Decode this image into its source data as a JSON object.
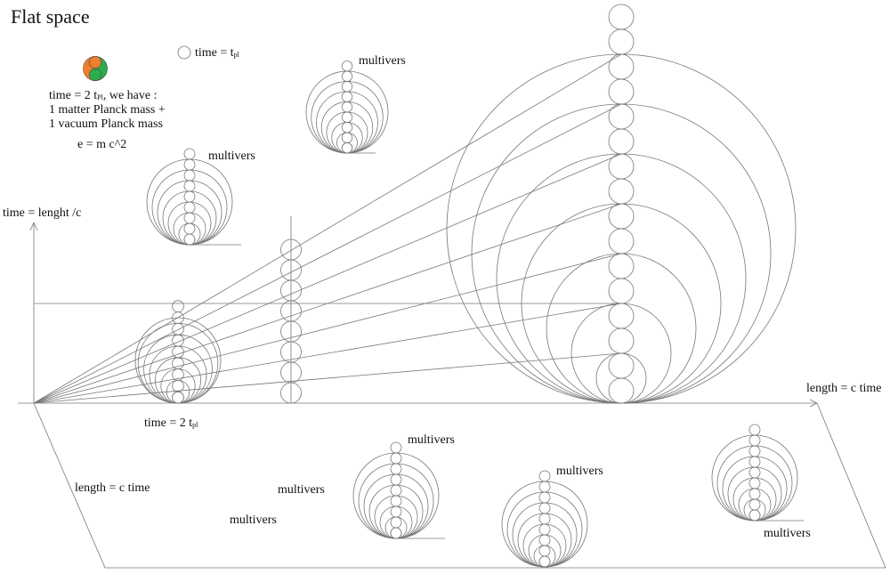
{
  "title": "Flat space",
  "legend_single": {
    "label": "time = t",
    "sub": "pl"
  },
  "legend_pair": {
    "line1_pre": "time = 2 t",
    "line1_sub": "Pl",
    "line1_post": ", we have :",
    "line2": "1 matter Planck mass +",
    "line3": "1 vacuum Planck mass",
    "equation": "e = m c^2",
    "colors": {
      "matter": "#f07f2a",
      "vacuum": "#2aae4a"
    }
  },
  "axes": {
    "vertical": "time = lenght /c",
    "horizontal": "length = c time",
    "depth": "length = c time",
    "origin_label": {
      "pre": "time = 2 t",
      "sub": "pl"
    }
  },
  "multivers_label": "multivers",
  "line_color": "#777777"
}
